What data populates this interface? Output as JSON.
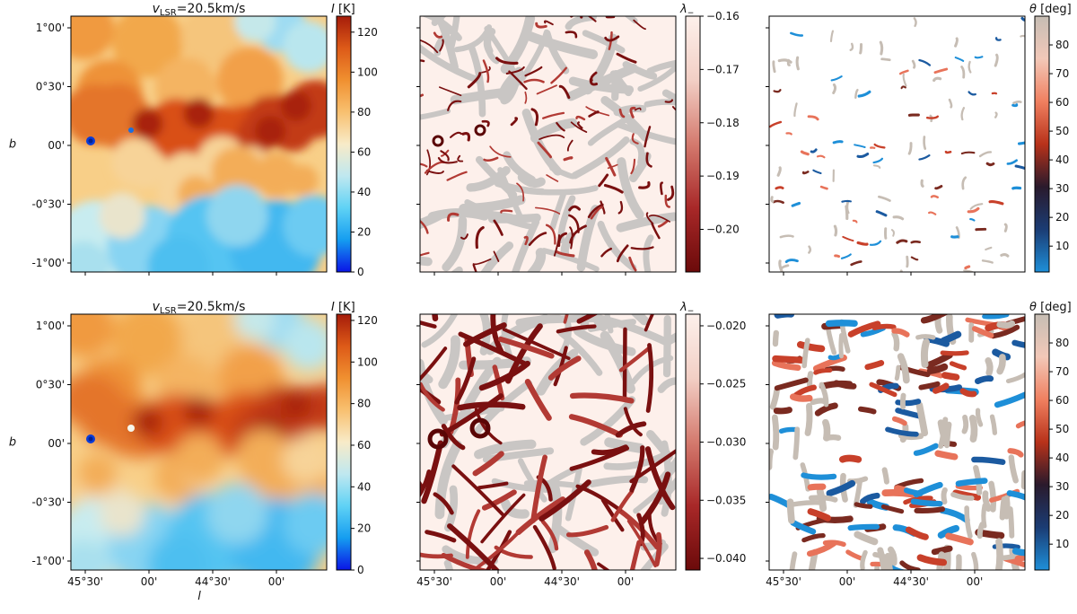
{
  "figure": {
    "rows": [
      {
        "title_prefix": "v",
        "title_sub": "LSR",
        "title_suffix": "=20.5km/s",
        "panels": [
          {
            "kind": "intensity",
            "cbar_label_main": "I",
            "cbar_label_unit": " [K]",
            "cbar_ticks": [
              "0",
              "20",
              "40",
              "60",
              "80",
              "100",
              "120"
            ],
            "cbar_range": [
              0,
              128
            ]
          },
          {
            "kind": "eigenvalue",
            "cbar_label_main": "λ",
            "cbar_label_sub": "−",
            "cbar_ticks": [
              "−0.20",
              "−0.19",
              "−0.18",
              "−0.17",
              "−0.16"
            ],
            "cbar_range": [
              -0.208,
              -0.16
            ]
          },
          {
            "kind": "angle",
            "cbar_label_main": "θ",
            "cbar_label_unit": " [deg]",
            "cbar_ticks": [
              "10",
              "20",
              "30",
              "40",
              "50",
              "60",
              "70",
              "80"
            ],
            "cbar_range": [
              1,
              90
            ]
          }
        ]
      },
      {
        "title_prefix": "v",
        "title_sub": "LSR",
        "title_suffix": "=20.5km/s",
        "panels": [
          {
            "kind": "intensity",
            "cbar_label_main": "I",
            "cbar_label_unit": " [K]",
            "cbar_ticks": [
              "0",
              "20",
              "40",
              "60",
              "80",
              "100",
              "120"
            ],
            "cbar_range": [
              0,
              123
            ]
          },
          {
            "kind": "eigenvalue",
            "cbar_label_main": "λ",
            "cbar_label_sub": "−",
            "cbar_ticks": [
              "−0.040",
              "−0.035",
              "−0.030",
              "−0.025",
              "−0.020"
            ],
            "cbar_range": [
              -0.041,
              -0.019
            ]
          },
          {
            "kind": "angle",
            "cbar_label_main": "θ",
            "cbar_label_unit": " [deg]",
            "cbar_ticks": [
              "10",
              "20",
              "30",
              "40",
              "50",
              "60",
              "70",
              "80"
            ],
            "cbar_range": [
              1,
              90
            ]
          }
        ]
      }
    ],
    "axes": {
      "ylabel": "b",
      "xlabel": "l",
      "yticks": [
        "1°00'",
        "0°30'",
        "00'",
        "-0°30'",
        "-1°00'"
      ],
      "xticks": [
        "45°30'",
        "00'",
        "44°30'",
        "00'"
      ]
    },
    "colors": {
      "intensity_map": [
        "#0a14e6",
        "#159df0",
        "#5fd2f5",
        "#bfe8f0",
        "#f8ebc8",
        "#f8c070",
        "#f09030",
        "#dd5a18",
        "#a51c0a"
      ],
      "eigen_map": [
        "#6b0a0a",
        "#a82828",
        "#d47a6e",
        "#f2cfc5",
        "#fdf0eb"
      ],
      "angle_map": [
        "#1e8fd8",
        "#1b3c74",
        "#2a1a2c",
        "#b8321a",
        "#f08060",
        "#f2c8b8",
        "#c6bdb4"
      ],
      "filament_gray": "#c9c6c4"
    }
  },
  "chart_data": [
    {
      "type": "heatmap",
      "title": "vLSR=20.5km/s",
      "xlabel": "",
      "ylabel": "b",
      "colorbar_label": "I [K]",
      "colorbar_range": [
        0,
        128
      ],
      "x_ticks": [
        "45°30'",
        "00'",
        "44°30'",
        "00'"
      ],
      "y_ticks": [
        "1°00'",
        "0°30'",
        "00'",
        "-0°30'",
        "-1°00'"
      ],
      "features": [
        "warm band ~100–125 K crossing center",
        "cool region ~30–50 K at bottom",
        "two compact cold spots near left edge"
      ]
    },
    {
      "type": "heatmap",
      "title": "",
      "colorbar_label": "λ−",
      "colorbar_range": [
        -0.208,
        -0.16
      ],
      "colorbar_ticks": [
        -0.2,
        -0.19,
        -0.18,
        -0.17,
        -0.16
      ],
      "features": [
        "thin dark-red filaments over gray skeleton"
      ]
    },
    {
      "type": "heatmap",
      "title": "",
      "colorbar_label": "θ [deg]",
      "colorbar_range": [
        1,
        90
      ],
      "colorbar_ticks": [
        10,
        20,
        30,
        40,
        50,
        60,
        70,
        80
      ],
      "features": [
        "sparse short oriented segments"
      ]
    },
    {
      "type": "heatmap",
      "title": "vLSR=20.5km/s",
      "xlabel": "l",
      "ylabel": "b",
      "colorbar_label": "I [K]",
      "colorbar_range": [
        0,
        123
      ],
      "x_ticks": [
        "45°30'",
        "00'",
        "44°30'",
        "00'"
      ],
      "y_ticks": [
        "1°00'",
        "0°30'",
        "00'",
        "-0°30'",
        "-1°00'"
      ],
      "features": [
        "smoothed version of upper map"
      ]
    },
    {
      "type": "heatmap",
      "title": "",
      "colorbar_label": "λ−",
      "colorbar_range": [
        -0.041,
        -0.019
      ],
      "colorbar_ticks": [
        -0.04,
        -0.035,
        -0.03,
        -0.025,
        -0.02
      ],
      "x_ticks": [
        "45°30'",
        "00'",
        "44°30'",
        "00'"
      ],
      "features": [
        "thick connected dark-red filament network"
      ]
    },
    {
      "type": "heatmap",
      "title": "",
      "colorbar_label": "θ [deg]",
      "colorbar_range": [
        1,
        90
      ],
      "colorbar_ticks": [
        10,
        20,
        30,
        40,
        50,
        60,
        70,
        80
      ],
      "x_ticks": [
        "45°30'",
        "00'",
        "44°30'",
        "00'"
      ],
      "features": [
        "dense short thick oriented segments"
      ]
    }
  ]
}
